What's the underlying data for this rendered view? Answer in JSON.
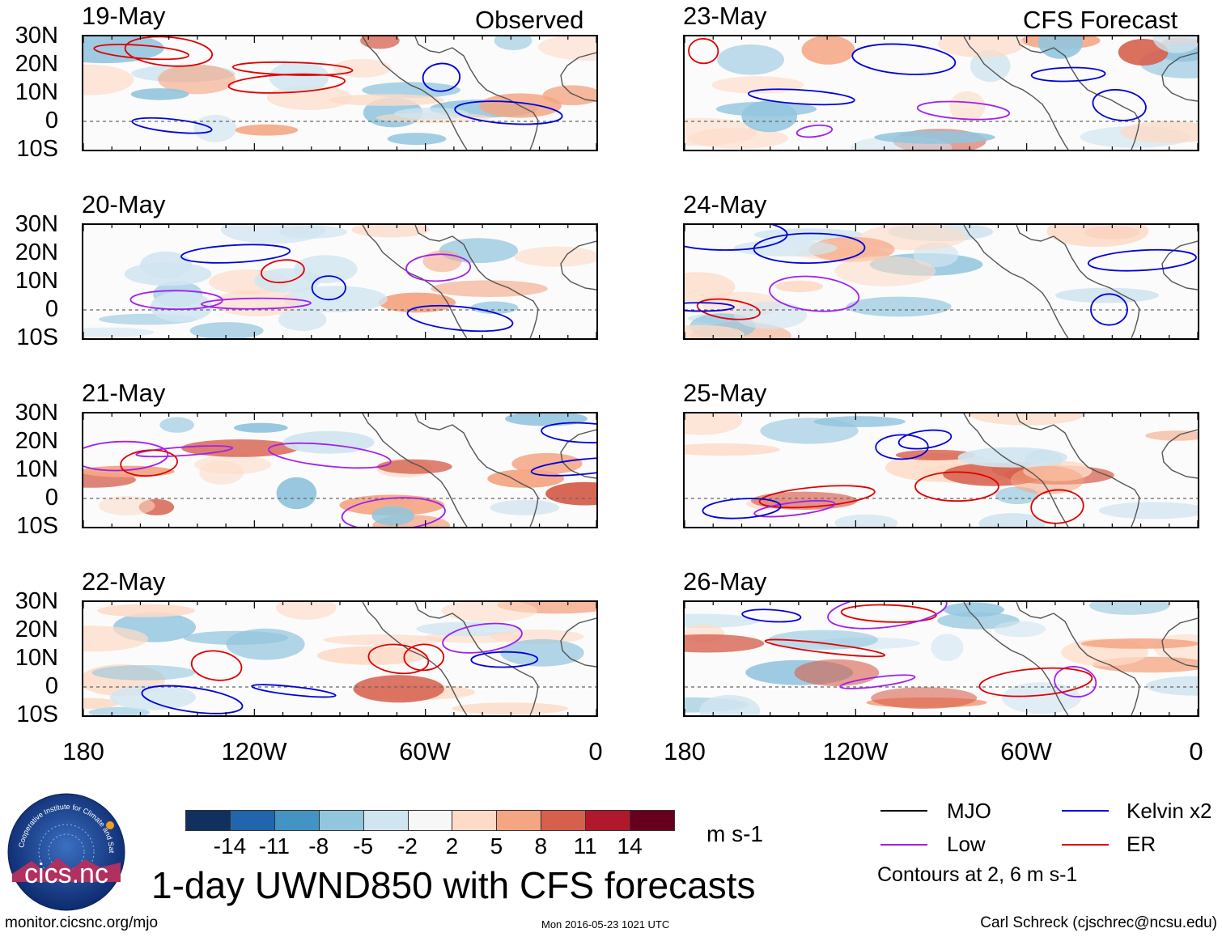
{
  "headers": {
    "left": "Observed",
    "right": "CFS Forecast"
  },
  "panels_left": [
    {
      "date": "19-May"
    },
    {
      "date": "20-May"
    },
    {
      "date": "21-May"
    },
    {
      "date": "22-May"
    }
  ],
  "panels_right": [
    {
      "date": "23-May"
    },
    {
      "date": "24-May"
    },
    {
      "date": "25-May"
    },
    {
      "date": "26-May"
    }
  ],
  "lat_labels": [
    "30N",
    "20N",
    "10N",
    "0",
    "10S"
  ],
  "lon_labels": [
    "180",
    "120W",
    "60W",
    "0"
  ],
  "colorbar": {
    "ticks": [
      "-14",
      "-11",
      "-8",
      "-5",
      "-2",
      "2",
      "5",
      "8",
      "11",
      "14"
    ],
    "colors": [
      "#10305e",
      "#2166ac",
      "#4393c3",
      "#92c5de",
      "#d1e5f0",
      "#f7f7f7",
      "#fddbc7",
      "#f4a582",
      "#d6604d",
      "#b2182b",
      "#67001f"
    ],
    "units": "m s-1"
  },
  "title": "1-day UWND850 with CFS forecasts",
  "legend": {
    "items": [
      {
        "label": "MJO",
        "color": "#000000"
      },
      {
        "label": "Kelvin x2",
        "color": "#0000dd"
      },
      {
        "label": "Low",
        "color": "#a020f0"
      },
      {
        "label": "ER",
        "color": "#e00000"
      }
    ],
    "note": "Contours at 2, 6 m s-1"
  },
  "logo": {
    "text": "cics.nc",
    "ring_text": "Cooperative Institute for Climate and Satellites"
  },
  "footer": {
    "url": "monitor.cicsnc.org/mjo",
    "timestamp": "Mon 2016-05-23 1021 UTC",
    "author": "Carl Schreck (cjschrec@ncsu.edu)"
  }
}
